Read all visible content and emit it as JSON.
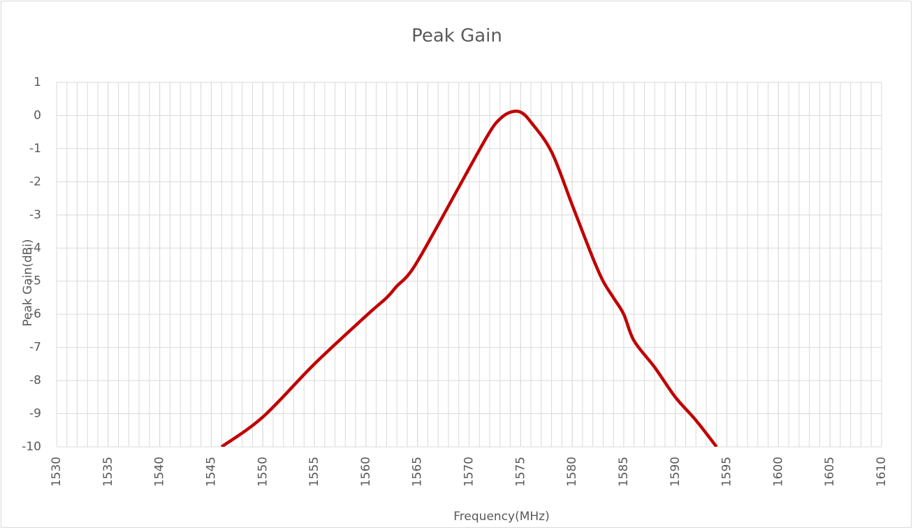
{
  "chart_data": {
    "type": "line",
    "title": "Peak Gain",
    "x_label": "Frequency(MHz)",
    "y_label": "Peak Gain(dBi)",
    "x": [
      1546,
      1550,
      1555,
      1560,
      1562,
      1563,
      1564,
      1565,
      1567,
      1570,
      1572,
      1573,
      1574,
      1575,
      1576,
      1578,
      1580,
      1582,
      1583,
      1584,
      1585,
      1586,
      1588,
      1590,
      1592,
      1594
    ],
    "series": [
      {
        "name": "Peak Gain",
        "color": "#c00000",
        "values": [
          -10,
          -9.1,
          -7.5,
          -6.05,
          -5.5,
          -5.15,
          -4.85,
          -4.4,
          -3.3,
          -1.6,
          -0.5,
          -0.1,
          0.1,
          0.1,
          -0.2,
          -1.1,
          -2.7,
          -4.3,
          -5.0,
          -5.5,
          -6.0,
          -6.8,
          -7.6,
          -8.5,
          -9.2,
          -10.0
        ]
      }
    ],
    "xlim": [
      1530,
      1610
    ],
    "ylim": [
      -10,
      1
    ],
    "xticks": [
      1530,
      1535,
      1540,
      1545,
      1550,
      1555,
      1560,
      1565,
      1570,
      1575,
      1580,
      1585,
      1590,
      1595,
      1600,
      1605,
      1610
    ],
    "xminorticks": [
      1530,
      1531,
      1532,
      1533,
      1534,
      1535,
      1536,
      1537,
      1538,
      1539,
      1540,
      1541,
      1542,
      1543,
      1544,
      1545,
      1546,
      1547,
      1548,
      1549,
      1550,
      1551,
      1552,
      1553,
      1554,
      1555,
      1556,
      1557,
      1558,
      1559,
      1560,
      1561,
      1562,
      1563,
      1564,
      1565,
      1566,
      1567,
      1568,
      1569,
      1570,
      1571,
      1572,
      1573,
      1574,
      1575,
      1576,
      1577,
      1578,
      1579,
      1580,
      1581,
      1582,
      1583,
      1584,
      1585,
      1586,
      1587,
      1588,
      1589,
      1590,
      1591,
      1592,
      1593,
      1594,
      1595,
      1596,
      1597,
      1598,
      1599,
      1600,
      1601,
      1602,
      1603,
      1604,
      1605,
      1606,
      1607,
      1608,
      1609,
      1610
    ],
    "yticks": [
      -10,
      -9,
      -8,
      -7,
      -6,
      -5,
      -4,
      -3,
      -2,
      -1,
      0,
      1
    ],
    "grid": true
  }
}
